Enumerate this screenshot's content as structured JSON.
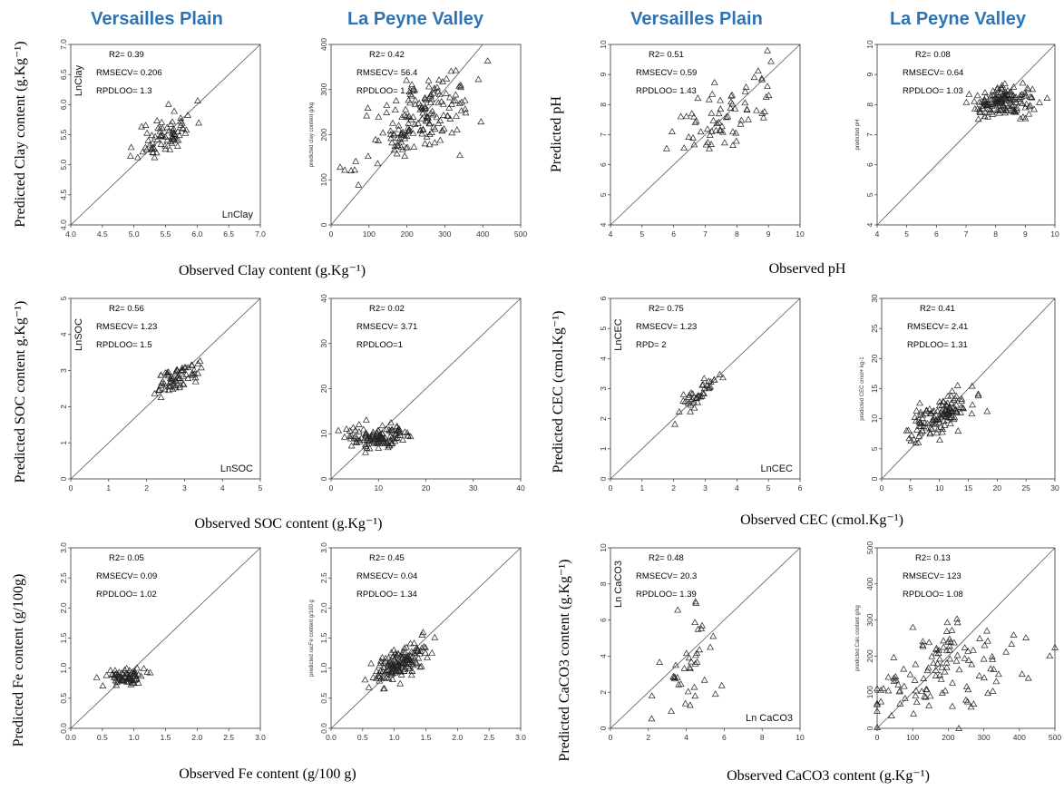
{
  "column_headers": [
    "Versailles Plain",
    "La Peyne Valley",
    "Versailles Plain",
    "La Peyne Valley"
  ],
  "axis_titles": {
    "clay_x": "Observed Clay content (g.Kg⁻¹)",
    "clay_y": "Predicted Clay content (g.Kg⁻¹)",
    "ph_x": "Observed pH",
    "ph_y": "Predicted pH",
    "soc_x": "Observed SOC content (g.Kg⁻¹)",
    "soc_y": "Predicted SOC content g.Kg⁻¹)",
    "cec_x": "Observed CEC (cmol.Kg⁻¹)",
    "cec_y": "Predicted CEC (cmol.Kg⁻¹)",
    "fe_x": "Observed Fe content (g/100 g)",
    "fe_y": "Predicted Fe content (g/100g)",
    "caco3_x": "Observed CaCO3 content (g.Kg⁻¹)",
    "caco3_y": "Predicted CaCO3 content (g.Kg⁻¹)"
  },
  "chart_data": [
    {
      "type": "scatter",
      "variable": "Clay",
      "region": "Versailles Plain",
      "xlim": [
        4,
        7
      ],
      "ylim": [
        4,
        7
      ],
      "xticks": [
        "4.0",
        "4.5",
        "5.0",
        "5.5",
        "6.0",
        "6.5",
        "7.0"
      ],
      "yticks": [
        "4.0",
        "4.5",
        "5.0",
        "5.5",
        "6.0",
        "6.5",
        "7.0"
      ],
      "stats": [
        "R2= 0.39",
        "RMSECV= 0.206",
        "RPDLOO= 1.3"
      ],
      "corner_labels": [
        "LnClay",
        "LnClay"
      ],
      "inner_ylabel": "",
      "cloud": {
        "count": 75,
        "cx": 5.5,
        "cy": 5.5,
        "sx": 0.22,
        "sy": 0.2,
        "r": 0.45,
        "seed": 11
      }
    },
    {
      "type": "scatter",
      "variable": "Clay",
      "region": "La Peyne Valley",
      "xlim": [
        0,
        500
      ],
      "ylim": [
        0,
        400
      ],
      "xticks": [
        "0",
        "100",
        "200",
        "300",
        "400",
        "500"
      ],
      "yticks": [
        "0",
        "100",
        "200",
        "300",
        "400"
      ],
      "stats": [
        "R2= 0.42",
        "RMSECV= 56.4",
        "RPDLOO= 1.31"
      ],
      "corner_labels": [],
      "inner_ylabel": "predicted clay content g/kg",
      "cloud": {
        "count": 170,
        "cx": 240,
        "cy": 235,
        "sx": 70,
        "sy": 50,
        "r": 0.6,
        "seed": 21
      }
    },
    {
      "type": "scatter",
      "variable": "pH",
      "region": "Versailles Plain",
      "xlim": [
        4,
        10
      ],
      "ylim": [
        4,
        10
      ],
      "xticks": [
        "4",
        "5",
        "6",
        "7",
        "8",
        "9",
        "10"
      ],
      "yticks": [
        "4",
        "5",
        "6",
        "7",
        "8",
        "9",
        "10"
      ],
      "stats": [
        "R2= 0.51",
        "RMSECV= 0.59",
        "RPDLOO= 1.43"
      ],
      "corner_labels": [],
      "inner_ylabel": "",
      "cloud": {
        "count": 70,
        "cx": 7.6,
        "cy": 7.6,
        "sx": 0.85,
        "sy": 0.75,
        "r": 0.6,
        "seed": 31
      }
    },
    {
      "type": "scatter",
      "variable": "pH",
      "region": "La Peyne Valley",
      "xlim": [
        4,
        10
      ],
      "ylim": [
        4,
        10
      ],
      "xticks": [
        "4",
        "5",
        "6",
        "7",
        "8",
        "9",
        "10"
      ],
      "yticks": [
        "4",
        "5",
        "6",
        "7",
        "8",
        "9",
        "10"
      ],
      "stats": [
        "R2= 0.08",
        "RMSECV= 0.64",
        "RPDLOO= 1.03"
      ],
      "corner_labels": [],
      "inner_ylabel": "predicted pH",
      "cloud": {
        "count": 150,
        "cx": 8.3,
        "cy": 8.1,
        "sx": 0.55,
        "sy": 0.25,
        "r": 0.2,
        "seed": 41
      }
    },
    {
      "type": "scatter",
      "variable": "SOC",
      "region": "Versailles Plain",
      "xlim": [
        0,
        5
      ],
      "ylim": [
        0,
        5
      ],
      "xticks": [
        "0",
        "1",
        "2",
        "3",
        "4",
        "5"
      ],
      "yticks": [
        "0",
        "1",
        "2",
        "3",
        "4",
        "5"
      ],
      "stats": [
        "R2= 0.56",
        "RMSECV= 1.23",
        "RPDLOO= 1.5"
      ],
      "corner_labels": [
        "LnSOC",
        "LnSOC"
      ],
      "inner_ylabel": "",
      "cloud": {
        "count": 70,
        "cx": 2.75,
        "cy": 2.75,
        "sx": 0.35,
        "sy": 0.28,
        "r": 0.75,
        "seed": 51
      }
    },
    {
      "type": "scatter",
      "variable": "SOC",
      "region": "La Peyne Valley",
      "xlim": [
        0,
        40
      ],
      "ylim": [
        0,
        40
      ],
      "xticks": [
        "0",
        "10",
        "20",
        "30",
        "40"
      ],
      "yticks": [
        "0",
        "10",
        "20",
        "30",
        "40"
      ],
      "stats": [
        "R2= 0.02",
        "RMSECV= 3.71",
        "RPDLOO=1"
      ],
      "corner_labels": [],
      "inner_ylabel": "",
      "cloud": {
        "count": 120,
        "cx": 9.5,
        "cy": 9.5,
        "sx": 3.6,
        "sy": 1.5,
        "r": 0.15,
        "seed": 61
      }
    },
    {
      "type": "scatter",
      "variable": "CEC",
      "region": "Versailles Plain",
      "xlim": [
        0,
        6
      ],
      "ylim": [
        0,
        6
      ],
      "xticks": [
        "0",
        "1",
        "2",
        "3",
        "4",
        "5",
        "6"
      ],
      "yticks": [
        "0",
        "1",
        "2",
        "3",
        "4",
        "5",
        "6"
      ],
      "stats": [
        "R2= 0.75",
        "RMSECV= 1.23",
        "RPD= 2"
      ],
      "corner_labels": [
        "LnCEC",
        "LnCEC"
      ],
      "inner_ylabel": "",
      "cloud": {
        "count": 40,
        "cx": 2.85,
        "cy": 2.85,
        "sx": 0.38,
        "sy": 0.36,
        "r": 0.88,
        "seed": 71
      }
    },
    {
      "type": "scatter",
      "variable": "CEC",
      "region": "La Peyne Valley",
      "xlim": [
        0,
        30
      ],
      "ylim": [
        0,
        30
      ],
      "xticks": [
        "0",
        "5",
        "10",
        "15",
        "20",
        "25",
        "30"
      ],
      "yticks": [
        "0",
        "5",
        "10",
        "15",
        "20",
        "25",
        "30"
      ],
      "stats": [
        "R2= 0.41",
        "RMSECV= 2.41",
        "RPDLOO= 1.31"
      ],
      "corner_labels": [],
      "inner_ylabel": "predicted CEC cmol+ kg-1",
      "cloud": {
        "count": 130,
        "cx": 10,
        "cy": 10.5,
        "sx": 2.6,
        "sy": 1.9,
        "r": 0.55,
        "seed": 81
      }
    },
    {
      "type": "scatter",
      "variable": "Fe",
      "region": "Versailles Plain",
      "xlim": [
        0,
        3
      ],
      "ylim": [
        0,
        3
      ],
      "xticks": [
        "0.0",
        "0.5",
        "1.0",
        "1.5",
        "2.0",
        "2.5",
        "3.0"
      ],
      "yticks": [
        "0.0",
        "0.5",
        "1.0",
        "1.5",
        "2.0",
        "2.5",
        "3.0"
      ],
      "stats": [
        "R2= 0.05",
        "RMSECV= 0.09",
        "RPDLOO= 1.02"
      ],
      "corner_labels": [],
      "inner_ylabel": "",
      "cloud": {
        "count": 70,
        "cx": 0.85,
        "cy": 0.85,
        "sx": 0.14,
        "sy": 0.07,
        "r": 0.2,
        "seed": 91
      }
    },
    {
      "type": "scatter",
      "variable": "Fe",
      "region": "La Peyne Valley",
      "xlim": [
        0,
        3
      ],
      "ylim": [
        0,
        3
      ],
      "xticks": [
        "0.0",
        "0.5",
        "1.0",
        "1.5",
        "2.0",
        "2.5",
        "3.0"
      ],
      "yticks": [
        "0.0",
        "0.5",
        "1.0",
        "1.5",
        "2.0",
        "2.5",
        "3.0"
      ],
      "stats": [
        "R2= 0.45",
        "RMSECV= 0.04",
        "RPDLOO= 1.34"
      ],
      "corner_labels": [],
      "inner_ylabel": "predicted racFe content g/100 g",
      "cloud": {
        "count": 150,
        "cx": 1.08,
        "cy": 1.08,
        "sx": 0.22,
        "sy": 0.18,
        "r": 0.7,
        "seed": 101
      }
    },
    {
      "type": "scatter",
      "variable": "CaCO3",
      "region": "Versailles Plain",
      "xlim": [
        0,
        10
      ],
      "ylim": [
        0,
        10
      ],
      "xticks": [
        "0",
        "2",
        "4",
        "6",
        "8",
        "10"
      ],
      "yticks": [
        "0",
        "2",
        "4",
        "6",
        "8",
        "10"
      ],
      "stats": [
        "R2= 0.48",
        "RMSECV= 20.3",
        "RPDLOO= 1.39"
      ],
      "corner_labels": [
        "Ln CaCO3",
        "Ln CaCO3"
      ],
      "inner_ylabel": "",
      "cloud": {
        "count": 40,
        "cx": 4.0,
        "cy": 3.2,
        "sx": 0.75,
        "sy": 1.9,
        "r": 0.3,
        "seed": 111
      }
    },
    {
      "type": "scatter",
      "variable": "CaCO3",
      "region": "La Peyne Valley",
      "xlim": [
        0,
        500
      ],
      "ylim": [
        0,
        500
      ],
      "xticks": [
        "0",
        "100",
        "200",
        "300",
        "400",
        "500"
      ],
      "yticks": [
        "0",
        "100",
        "200",
        "300",
        "400",
        "500"
      ],
      "stats": [
        "R2= 0.13",
        "RMSECV= 123",
        "RPDLOO= 1.08"
      ],
      "corner_labels": [],
      "inner_ylabel": "predicted Calc content g/kg",
      "cloud": {
        "count": 120,
        "cx": 180,
        "cy": 160,
        "sx": 110,
        "sy": 65,
        "r": 0.35,
        "seed": 121
      }
    }
  ]
}
